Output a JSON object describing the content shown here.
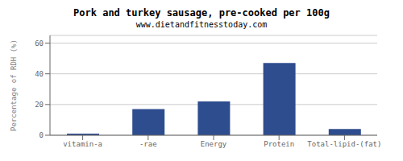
{
  "chart_data": {
    "type": "bar",
    "title": "Pork and turkey sausage, pre-cooked per 100g",
    "subtitle": "www.dietandfitnesstoday.com",
    "categories": [
      "vitamin-a",
      "-rae",
      "Energy",
      "Protein",
      "Total-lipid-(fat)"
    ],
    "values": [
      1.0,
      17.0,
      22.0,
      47.0,
      4.0
    ],
    "color": "#2e4d8f",
    "ylabel": "Percentage of RDH (%)",
    "ylim": [
      0,
      65
    ],
    "yticks": [
      0,
      20,
      40,
      60
    ],
    "grid": true
  }
}
